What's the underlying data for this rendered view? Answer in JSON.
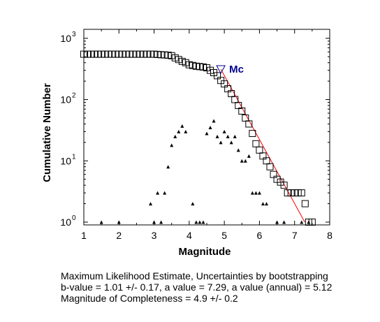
{
  "chart_data": {
    "type": "scatter",
    "xlabel": "Magnitude",
    "ylabel": "Cumulative Number",
    "xlim": [
      1,
      8
    ],
    "ylim": [
      0.9,
      1400
    ],
    "yscale": "log",
    "x_ticks": [
      "1",
      "2",
      "3",
      "4",
      "5",
      "6",
      "7",
      "8"
    ],
    "y_ticks": [
      {
        "value": 1,
        "base": "10",
        "exp": "0"
      },
      {
        "value": 10,
        "base": "10",
        "exp": "1"
      },
      {
        "value": 100,
        "base": "10",
        "exp": "2"
      },
      {
        "value": 1000,
        "base": "10",
        "exp": "3"
      }
    ],
    "series": [
      {
        "marker": "square",
        "color": "#000000",
        "points": [
          [
            1.0,
            550
          ],
          [
            1.1,
            550
          ],
          [
            1.2,
            550
          ],
          [
            1.3,
            550
          ],
          [
            1.4,
            550
          ],
          [
            1.5,
            550
          ],
          [
            1.6,
            550
          ],
          [
            1.7,
            550
          ],
          [
            1.8,
            550
          ],
          [
            1.9,
            550
          ],
          [
            2.0,
            550
          ],
          [
            2.1,
            550
          ],
          [
            2.2,
            550
          ],
          [
            2.3,
            550
          ],
          [
            2.4,
            550
          ],
          [
            2.5,
            550
          ],
          [
            2.6,
            550
          ],
          [
            2.7,
            550
          ],
          [
            2.8,
            550
          ],
          [
            2.9,
            550
          ],
          [
            3.0,
            550
          ],
          [
            3.1,
            545
          ],
          [
            3.2,
            540
          ],
          [
            3.3,
            535
          ],
          [
            3.4,
            530
          ],
          [
            3.5,
            520
          ],
          [
            3.6,
            480
          ],
          [
            3.7,
            450
          ],
          [
            3.8,
            420
          ],
          [
            3.9,
            400
          ],
          [
            4.0,
            370
          ],
          [
            4.1,
            360
          ],
          [
            4.2,
            350
          ],
          [
            4.3,
            345
          ],
          [
            4.4,
            340
          ],
          [
            4.5,
            330
          ],
          [
            4.6,
            300
          ],
          [
            4.7,
            275
          ],
          [
            4.8,
            245
          ],
          [
            4.9,
            205
          ],
          [
            5.0,
            180
          ],
          [
            5.1,
            150
          ],
          [
            5.2,
            125
          ],
          [
            5.3,
            100
          ],
          [
            5.4,
            80
          ],
          [
            5.5,
            65
          ],
          [
            5.6,
            50
          ],
          [
            5.7,
            40
          ],
          [
            5.8,
            28
          ],
          [
            5.9,
            19
          ],
          [
            6.0,
            15
          ],
          [
            6.1,
            12
          ],
          [
            6.2,
            10
          ],
          [
            6.3,
            8
          ],
          [
            6.4,
            6
          ],
          [
            6.5,
            5
          ],
          [
            6.6,
            4.5
          ],
          [
            6.7,
            4
          ],
          [
            6.8,
            3
          ],
          [
            6.9,
            3
          ],
          [
            7.0,
            3
          ],
          [
            7.1,
            3
          ],
          [
            7.2,
            3
          ],
          [
            7.3,
            2
          ],
          [
            7.4,
            1
          ],
          [
            7.5,
            1
          ]
        ]
      },
      {
        "marker": "triangle-up",
        "color": "#000000",
        "points": [
          [
            1.5,
            1
          ],
          [
            2.0,
            1
          ],
          [
            2.9,
            2
          ],
          [
            3.0,
            1
          ],
          [
            3.1,
            3
          ],
          [
            3.2,
            1
          ],
          [
            3.3,
            3
          ],
          [
            3.4,
            8
          ],
          [
            3.5,
            18
          ],
          [
            3.6,
            25
          ],
          [
            3.7,
            30
          ],
          [
            3.8,
            37
          ],
          [
            3.9,
            30
          ],
          [
            4.1,
            2
          ],
          [
            4.2,
            1
          ],
          [
            4.3,
            1
          ],
          [
            4.4,
            1
          ],
          [
            4.5,
            28
          ],
          [
            4.6,
            35
          ],
          [
            4.7,
            45
          ],
          [
            4.8,
            25
          ],
          [
            4.9,
            20
          ],
          [
            5.0,
            30
          ],
          [
            5.1,
            25
          ],
          [
            5.2,
            20
          ],
          [
            5.3,
            25
          ],
          [
            5.4,
            15
          ],
          [
            5.5,
            10
          ],
          [
            5.6,
            10
          ],
          [
            5.7,
            12
          ],
          [
            5.8,
            3
          ],
          [
            5.9,
            3
          ],
          [
            6.0,
            3
          ],
          [
            6.1,
            2
          ],
          [
            6.2,
            2
          ],
          [
            6.5,
            1
          ],
          [
            6.7,
            1
          ],
          [
            7.2,
            1
          ],
          [
            7.4,
            1
          ]
        ]
      }
    ],
    "fit_line": {
      "color": "#ff0000",
      "points": [
        [
          4.9,
          314
        ],
        [
          7.29,
          1
        ]
      ]
    },
    "mc_marker": {
      "label": "Mc",
      "x": 4.9,
      "y": 314,
      "color": "#00008b",
      "marker": "triangle-down"
    },
    "grid": false
  },
  "caption": {
    "line1": "Maximum Likelihood Estimate, Uncertainties by bootstrapping",
    "line2": "b-value = 1.01 +/- 0.17,  a value = 7.29,  a value (annual) = 5.12",
    "line3": "Magnitude of Completeness = 4.9 +/- 0.2"
  }
}
